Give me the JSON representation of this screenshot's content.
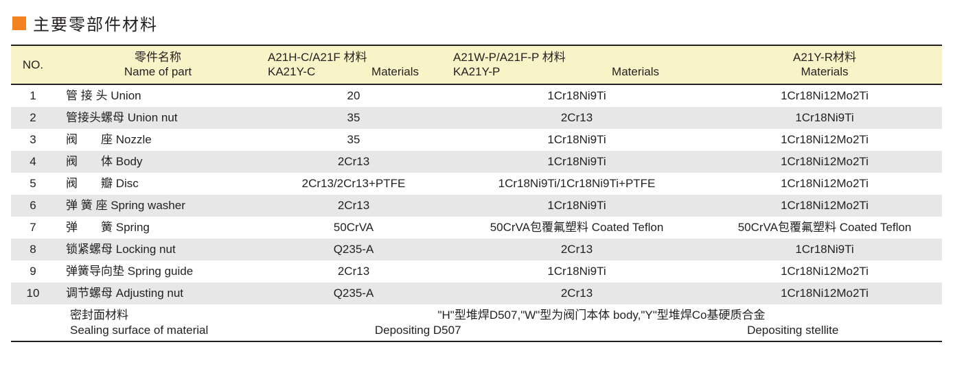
{
  "colors": {
    "accent_square": "#f58220",
    "header_bg": "#f8f4c7",
    "row_alt_bg": "#e7e7e8",
    "row_bg": "#ffffff",
    "rule": "#231f20",
    "text": "#231f20"
  },
  "title": "主要零部件材料",
  "table": {
    "columns": {
      "no": "NO.",
      "name": {
        "cn": "零件名称",
        "en": "Name of part"
      },
      "mat1": {
        "l1": "A21H-C/A21F 材料",
        "l2a": "KA21Y-C",
        "l2b": "Materials"
      },
      "mat2": {
        "l1": "A21W-P/A21F-P  材料",
        "l2a": "KA21Y-P",
        "l2b": "Materials"
      },
      "mat3": {
        "l1": "A21Y-R材料",
        "l2": "Materials"
      }
    },
    "rows": [
      {
        "no": "1",
        "name_cn": "管 接 头",
        "name_en": "Union",
        "m1": "20",
        "m2": "1Cr18Ni9Ti",
        "m3": "1Cr18Ni12Mo2Ti"
      },
      {
        "no": "2",
        "name_cn": "管接头螺母",
        "name_en": "Union nut",
        "m1": "35",
        "m2": "2Cr13",
        "m3": "1Cr18Ni9Ti"
      },
      {
        "no": "3",
        "name_cn": "阀　　座",
        "name_en": "Nozzle",
        "m1": "35",
        "m2": "1Cr18Ni9Ti",
        "m3": "1Cr18Ni12Mo2Ti"
      },
      {
        "no": "4",
        "name_cn": "阀　　体",
        "name_en": "Body",
        "m1": "2Cr13",
        "m2": "1Cr18Ni9Ti",
        "m3": "1Cr18Ni12Mo2Ti"
      },
      {
        "no": "5",
        "name_cn": "阀　　瓣",
        "name_en": "Disc",
        "m1": "2Cr13/2Cr13+PTFE",
        "m2": "1Cr18Ni9Ti/1Cr18Ni9Ti+PTFE",
        "m3": "1Cr18Ni12Mo2Ti"
      },
      {
        "no": "6",
        "name_cn": "弹 簧 座",
        "name_en": "Spring washer",
        "m1": "2Cr13",
        "m2": "1Cr18Ni9Ti",
        "m3": "1Cr18Ni12Mo2Ti"
      },
      {
        "no": "7",
        "name_cn": "弹　　簧",
        "name_en": "Spring",
        "m1": "50CrVA",
        "m2": "50CrVA包覆氟塑料 Coated Teflon",
        "m3": "50CrVA包覆氟塑料 Coated Teflon"
      },
      {
        "no": "8",
        "name_cn": "锁紧螺母",
        "name_en": "Locking nut",
        "m1": "Q235-A",
        "m2": "2Cr13",
        "m3": "1Cr18Ni9Ti"
      },
      {
        "no": "9",
        "name_cn": "弹簧导向垫",
        "name_en": "Spring guide",
        "m1": "2Cr13",
        "m2": "1Cr18Ni9Ti",
        "m3": "1Cr18Ni12Mo2Ti"
      },
      {
        "no": "10",
        "name_cn": "调节螺母",
        "name_en": "Adjusting nut",
        "m1": "Q235-A",
        "m2": "2Cr13",
        "m3": "1Cr18Ni12Mo2Ti"
      }
    ],
    "footer": {
      "name_cn": "密封面材料",
      "name_en": "Sealing surface of material",
      "mid_cn": "\"H\"型堆焊D507,\"W\"型为阀门本体 body,\"Y\"型堆焊Co基硬质合金",
      "mid_en_left": "Depositing D507",
      "mid_en_right": "Depositing stellite"
    }
  }
}
